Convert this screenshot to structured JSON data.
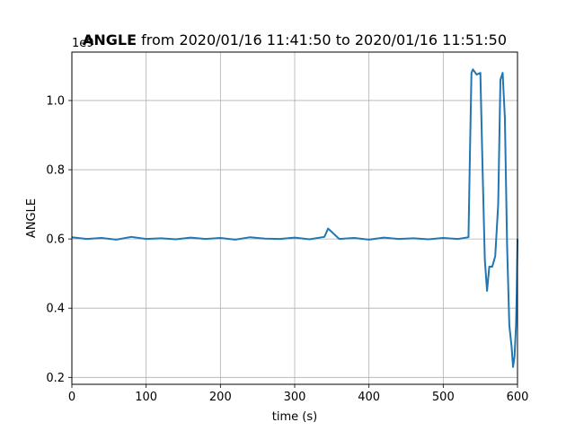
{
  "chart_data": {
    "type": "line",
    "title_bold": "ANGLE",
    "title_rest": " from 2020/01/16 11:41:50 to 2020/01/16 11:51:50",
    "xlabel": "time (s)",
    "ylabel": "ANGLE",
    "y_offset_label": "1e9",
    "xlim": [
      0,
      600
    ],
    "ylim": [
      0.18,
      1.14
    ],
    "x_ticks": [
      0,
      100,
      200,
      300,
      400,
      500,
      600
    ],
    "x_tick_labels": [
      "0",
      "100",
      "200",
      "300",
      "400",
      "500",
      "600"
    ],
    "y_ticks": [
      0.2,
      0.4,
      0.6,
      0.8,
      1.0
    ],
    "y_tick_labels": [
      "0.2",
      "0.4",
      "0.6",
      "0.8",
      "1.0"
    ],
    "grid": true,
    "line_color": "#1f77b4",
    "series": [
      {
        "x": [
          0,
          20,
          40,
          60,
          80,
          100,
          120,
          140,
          160,
          180,
          200,
          220,
          240,
          260,
          280,
          300,
          320,
          340,
          345,
          360,
          380,
          400,
          420,
          440,
          460,
          480,
          500,
          520,
          534,
          536,
          538,
          540,
          545,
          550,
          553,
          556,
          559,
          562,
          566,
          570,
          574,
          577,
          580,
          583,
          586,
          589,
          592,
          594,
          596,
          598,
          599,
          600
        ],
        "y": [
          0.605,
          0.6,
          0.603,
          0.598,
          0.606,
          0.6,
          0.602,
          0.599,
          0.604,
          0.6,
          0.603,
          0.598,
          0.605,
          0.601,
          0.6,
          0.604,
          0.599,
          0.606,
          0.63,
          0.6,
          0.603,
          0.598,
          0.604,
          0.6,
          0.602,
          0.599,
          0.603,
          0.6,
          0.605,
          0.85,
          1.08,
          1.09,
          1.075,
          1.08,
          0.8,
          0.54,
          0.45,
          0.52,
          0.52,
          0.55,
          0.7,
          1.06,
          1.08,
          0.95,
          0.58,
          0.35,
          0.29,
          0.23,
          0.26,
          0.35,
          0.45,
          0.6
        ]
      }
    ]
  }
}
